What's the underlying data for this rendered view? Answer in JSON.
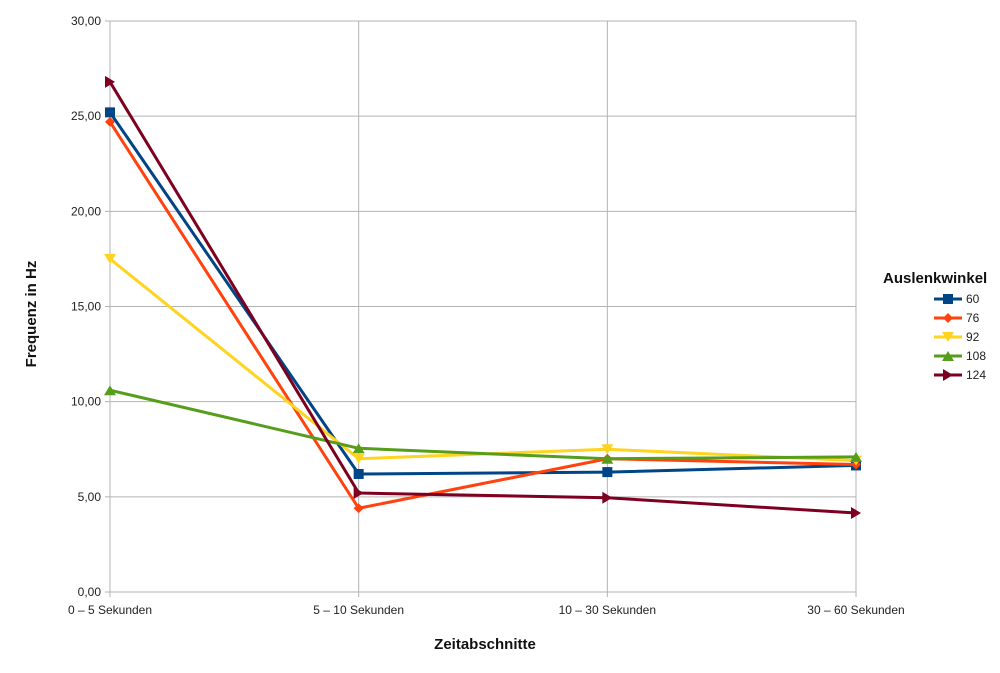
{
  "chart_data": {
    "type": "line",
    "title": "",
    "xlabel": "Zeitabschnitte",
    "ylabel": "Frequenz in Hz",
    "categories": [
      "0 – 5 Sekunden",
      "5 – 10 Sekunden",
      "10 – 30 Sekunden",
      "30 – 60 Sekunden"
    ],
    "ylim": [
      0,
      30
    ],
    "yticks": [
      0,
      5,
      10,
      15,
      20,
      25,
      30
    ],
    "ytick_labels": [
      "0,00",
      "5,00",
      "10,00",
      "15,00",
      "20,00",
      "25,00",
      "30,00"
    ],
    "grid": true,
    "legend": {
      "title": "Auslenkwinkel",
      "position": "right"
    },
    "series": [
      {
        "name": "60",
        "color": "#004586",
        "marker": "square",
        "values": [
          25.2,
          6.2,
          6.3,
          6.65
        ]
      },
      {
        "name": "76",
        "color": "#ff420e",
        "marker": "diamond",
        "values": [
          24.7,
          4.4,
          7.0,
          6.7
        ]
      },
      {
        "name": "92",
        "color": "#ffd320",
        "marker": "triangle-down",
        "values": [
          17.5,
          7.0,
          7.5,
          6.9
        ]
      },
      {
        "name": "108",
        "color": "#579d1c",
        "marker": "triangle-up",
        "values": [
          10.6,
          7.55,
          7.0,
          7.1
        ]
      },
      {
        "name": "124",
        "color": "#7e0021",
        "marker": "triangle-right",
        "values": [
          26.8,
          5.2,
          4.95,
          4.15
        ]
      }
    ]
  }
}
